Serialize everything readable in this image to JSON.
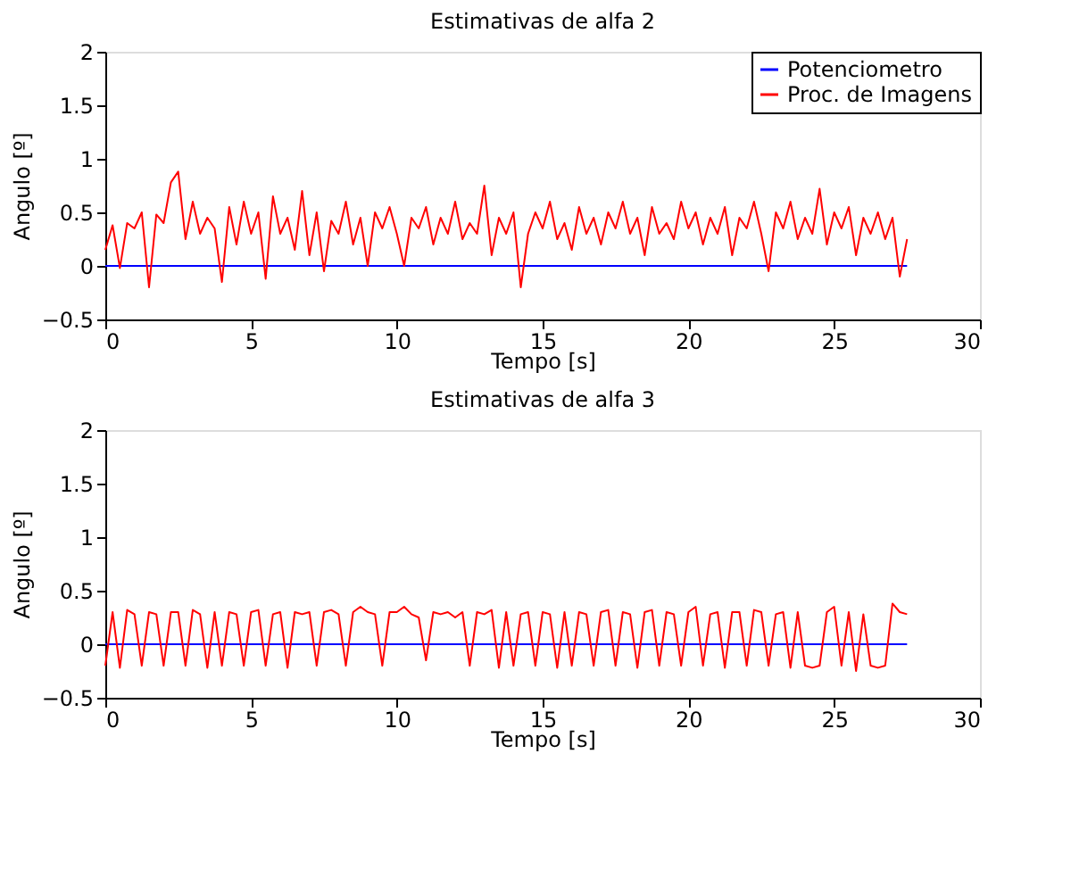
{
  "chart_data": [
    {
      "type": "line",
      "title": "Estimativas de alfa 2",
      "xlabel": "Tempo [s]",
      "ylabel": "Angulo [º]",
      "xlim": [
        0,
        30
      ],
      "xticks": [
        0,
        5,
        10,
        15,
        20,
        25,
        30
      ],
      "ylim": [
        -0.5,
        2
      ],
      "yticks": [
        -0.5,
        0,
        0.5,
        1,
        1.5,
        2
      ],
      "grid": false,
      "legend": "top right",
      "x": [
        0,
        0.25,
        0.5,
        0.75,
        1,
        1.25,
        1.5,
        1.75,
        2,
        2.25,
        2.5,
        2.75,
        3,
        3.25,
        3.5,
        3.75,
        4,
        4.25,
        4.5,
        4.75,
        5,
        5.25,
        5.5,
        5.75,
        6,
        6.25,
        6.5,
        6.75,
        7,
        7.25,
        7.5,
        7.75,
        8,
        8.25,
        8.5,
        8.75,
        9,
        9.25,
        9.5,
        9.75,
        10,
        10.25,
        10.5,
        10.75,
        11,
        11.25,
        11.5,
        11.75,
        12,
        12.25,
        12.5,
        12.75,
        13,
        13.25,
        13.5,
        13.75,
        14,
        14.25,
        14.5,
        14.75,
        15,
        15.25,
        15.5,
        15.75,
        16,
        16.25,
        16.5,
        16.75,
        17,
        17.25,
        17.5,
        17.75,
        18,
        18.25,
        18.5,
        18.75,
        19,
        19.25,
        19.5,
        19.75,
        20,
        20.25,
        20.5,
        20.75,
        21,
        21.25,
        21.5,
        21.75,
        22,
        22.25,
        22.5,
        22.75,
        23,
        23.25,
        23.5,
        23.75,
        24,
        24.25,
        24.5,
        24.75,
        25,
        25.25,
        25.5,
        25.75,
        26,
        26.25,
        26.5,
        26.75,
        27,
        27.25,
        27.5
      ],
      "series": [
        {
          "name": "Potenciometro",
          "color": "#0000ff",
          "values": [
            0,
            0,
            0,
            0,
            0,
            0,
            0,
            0,
            0,
            0,
            0,
            0,
            0,
            0,
            0,
            0,
            0,
            0,
            0,
            0,
            0,
            0,
            0,
            0,
            0,
            0,
            0,
            0,
            0,
            0,
            0,
            0,
            0,
            0,
            0,
            0,
            0,
            0,
            0,
            0,
            0,
            0,
            0,
            0,
            0,
            0,
            0,
            0,
            0,
            0,
            0,
            0,
            0,
            0,
            0,
            0,
            0,
            0,
            0,
            0,
            0,
            0,
            0,
            0,
            0,
            0,
            0,
            0,
            0,
            0,
            0,
            0,
            0,
            0,
            0,
            0,
            0,
            0,
            0,
            0,
            0,
            0,
            0,
            0,
            0,
            0,
            0,
            0,
            0,
            0,
            0,
            0,
            0,
            0,
            0,
            0,
            0,
            0,
            0,
            0,
            0,
            0,
            0,
            0,
            0,
            0,
            0,
            0,
            0,
            0,
            0
          ]
        },
        {
          "name": "Proc. de Imagens",
          "color": "#ff0000",
          "values": [
            0.15,
            0.38,
            -0.02,
            0.4,
            0.35,
            0.5,
            -0.2,
            0.48,
            0.4,
            0.78,
            0.88,
            0.25,
            0.6,
            0.3,
            0.45,
            0.35,
            -0.15,
            0.55,
            0.2,
            0.6,
            0.3,
            0.5,
            -0.12,
            0.65,
            0.3,
            0.45,
            0.15,
            0.7,
            0.1,
            0.5,
            -0.05,
            0.42,
            0.3,
            0.6,
            0.2,
            0.45,
            0.0,
            0.5,
            0.35,
            0.55,
            0.3,
            0.0,
            0.45,
            0.35,
            0.55,
            0.2,
            0.45,
            0.3,
            0.6,
            0.25,
            0.4,
            0.3,
            0.75,
            0.1,
            0.45,
            0.3,
            0.5,
            -0.2,
            0.3,
            0.5,
            0.35,
            0.6,
            0.25,
            0.4,
            0.15,
            0.55,
            0.3,
            0.45,
            0.2,
            0.5,
            0.35,
            0.6,
            0.3,
            0.45,
            0.1,
            0.55,
            0.3,
            0.4,
            0.25,
            0.6,
            0.35,
            0.5,
            0.2,
            0.45,
            0.3,
            0.55,
            0.1,
            0.45,
            0.35,
            0.6,
            0.3,
            -0.05,
            0.5,
            0.35,
            0.6,
            0.25,
            0.45,
            0.3,
            0.72,
            0.2,
            0.5,
            0.35,
            0.55,
            0.1,
            0.45,
            0.3,
            0.5,
            0.25,
            0.45,
            -0.1,
            0.25
          ]
        }
      ]
    },
    {
      "type": "line",
      "title": "Estimativas de alfa 3",
      "xlabel": "Tempo [s]",
      "ylabel": "Angulo [º]",
      "xlim": [
        0,
        30
      ],
      "xticks": [
        0,
        5,
        10,
        15,
        20,
        25,
        30
      ],
      "ylim": [
        -0.5,
        2
      ],
      "yticks": [
        -0.5,
        0,
        0.5,
        1,
        1.5,
        2
      ],
      "grid": false,
      "legend": "top right",
      "x": [
        0,
        0.25,
        0.5,
        0.75,
        1,
        1.25,
        1.5,
        1.75,
        2,
        2.25,
        2.5,
        2.75,
        3,
        3.25,
        3.5,
        3.75,
        4,
        4.25,
        4.5,
        4.75,
        5,
        5.25,
        5.5,
        5.75,
        6,
        6.25,
        6.5,
        6.75,
        7,
        7.25,
        7.5,
        7.75,
        8,
        8.25,
        8.5,
        8.75,
        9,
        9.25,
        9.5,
        9.75,
        10,
        10.25,
        10.5,
        10.75,
        11,
        11.25,
        11.5,
        11.75,
        12,
        12.25,
        12.5,
        12.75,
        13,
        13.25,
        13.5,
        13.75,
        14,
        14.25,
        14.5,
        14.75,
        15,
        15.25,
        15.5,
        15.75,
        16,
        16.25,
        16.5,
        16.75,
        17,
        17.25,
        17.5,
        17.75,
        18,
        18.25,
        18.5,
        18.75,
        19,
        19.25,
        19.5,
        19.75,
        20,
        20.25,
        20.5,
        20.75,
        21,
        21.25,
        21.5,
        21.75,
        22,
        22.25,
        22.5,
        22.75,
        23,
        23.25,
        23.5,
        23.75,
        24,
        24.25,
        24.5,
        24.75,
        25,
        25.25,
        25.5,
        25.75,
        26,
        26.25,
        26.5,
        26.75,
        27,
        27.25,
        27.5
      ],
      "series": [
        {
          "name": "Potenciometro",
          "color": "#0000ff",
          "values": [
            0,
            0,
            0,
            0,
            0,
            0,
            0,
            0,
            0,
            0,
            0,
            0,
            0,
            0,
            0,
            0,
            0,
            0,
            0,
            0,
            0,
            0,
            0,
            0,
            0,
            0,
            0,
            0,
            0,
            0,
            0,
            0,
            0,
            0,
            0,
            0,
            0,
            0,
            0,
            0,
            0,
            0,
            0,
            0,
            0,
            0,
            0,
            0,
            0,
            0,
            0,
            0,
            0,
            0,
            0,
            0,
            0,
            0,
            0,
            0,
            0,
            0,
            0,
            0,
            0,
            0,
            0,
            0,
            0,
            0,
            0,
            0,
            0,
            0,
            0,
            0,
            0,
            0,
            0,
            0,
            0,
            0,
            0,
            0,
            0,
            0,
            0,
            0,
            0,
            0,
            0,
            0,
            0,
            0,
            0,
            0,
            0,
            0,
            0,
            0,
            0,
            0,
            0,
            0,
            0,
            0,
            0,
            0,
            0,
            0,
            0
          ]
        },
        {
          "name": "Proc. de Imagens",
          "color": "#ff0000",
          "values": [
            -0.2,
            0.3,
            -0.22,
            0.32,
            0.28,
            -0.2,
            0.3,
            0.28,
            -0.2,
            0.3,
            0.3,
            -0.2,
            0.32,
            0.28,
            -0.22,
            0.3,
            -0.2,
            0.3,
            0.28,
            -0.2,
            0.3,
            0.32,
            -0.2,
            0.28,
            0.3,
            -0.22,
            0.3,
            0.28,
            0.3,
            -0.2,
            0.3,
            0.32,
            0.28,
            -0.2,
            0.3,
            0.35,
            0.3,
            0.28,
            -0.2,
            0.3,
            0.3,
            0.35,
            0.28,
            0.25,
            -0.15,
            0.3,
            0.28,
            0.3,
            0.25,
            0.3,
            -0.2,
            0.3,
            0.28,
            0.32,
            -0.22,
            0.3,
            -0.2,
            0.28,
            0.3,
            -0.2,
            0.3,
            0.28,
            -0.22,
            0.3,
            -0.2,
            0.3,
            0.28,
            -0.2,
            0.3,
            0.32,
            -0.2,
            0.3,
            0.28,
            -0.22,
            0.3,
            0.32,
            -0.2,
            0.3,
            0.28,
            -0.2,
            0.3,
            0.35,
            -0.2,
            0.28,
            0.3,
            -0.22,
            0.3,
            0.3,
            -0.2,
            0.32,
            0.3,
            -0.2,
            0.28,
            0.3,
            -0.22,
            0.3,
            -0.2,
            -0.22,
            -0.2,
            0.3,
            0.35,
            -0.2,
            0.3,
            -0.25,
            0.28,
            -0.2,
            -0.22,
            -0.2,
            0.38,
            0.3,
            0.28
          ]
        }
      ]
    }
  ]
}
